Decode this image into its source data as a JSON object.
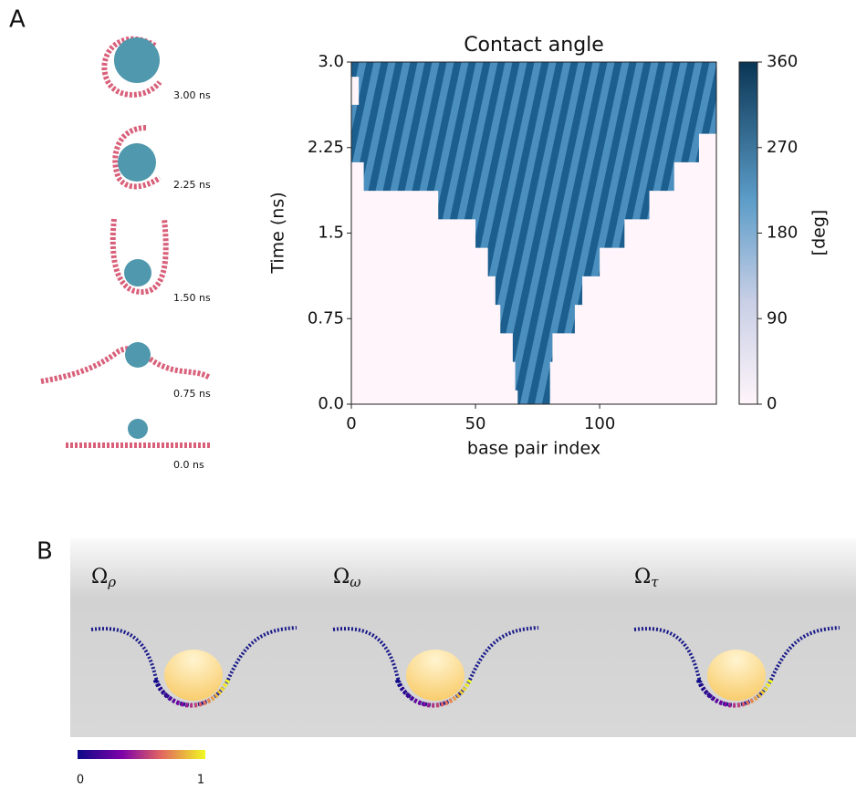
{
  "panel_a": {
    "label": "A",
    "snapshots": [
      "3.00 ns",
      "2.25 ns",
      "1.50 ns",
      "0.75 ns",
      "0.0 ns"
    ]
  },
  "chart_data": {
    "type": "heatmap",
    "title": "Contact angle",
    "x_label": "base pair index",
    "y_label": "Time (ns)",
    "xlim": [
      0,
      147
    ],
    "xticks": [
      0,
      50,
      100
    ],
    "ylim": [
      0,
      3
    ],
    "yticks": [
      {
        "value": 0,
        "label": "0.0"
      },
      0.75,
      1.5,
      2.25,
      {
        "value": 3,
        "label": "3.0"
      }
    ],
    "y": [
      0,
      0.25,
      0.5,
      0.75,
      1,
      1.25,
      1.5,
      1.75,
      2,
      2.25,
      2.5,
      2.75,
      3
    ],
    "left": [
      67,
      66,
      65,
      60,
      58,
      55,
      50,
      35,
      5,
      0,
      0,
      3,
      0
    ],
    "right": [
      80,
      80,
      81,
      90,
      93,
      100,
      110,
      120,
      130,
      140,
      147,
      147,
      147
    ],
    "colorbar": {
      "label": "[deg]",
      "lim": [
        0,
        360
      ],
      "ticks": [
        0,
        90,
        180,
        270,
        360
      ]
    }
  },
  "panel_b": {
    "label": "B",
    "maps": [
      {
        "symbol": "Ω",
        "subscript": "ρ"
      },
      {
        "symbol": "Ω",
        "subscript": "ω"
      },
      {
        "symbol": "Ω",
        "subscript": "τ"
      }
    ],
    "colorbar_ticks": [
      0,
      1
    ]
  }
}
